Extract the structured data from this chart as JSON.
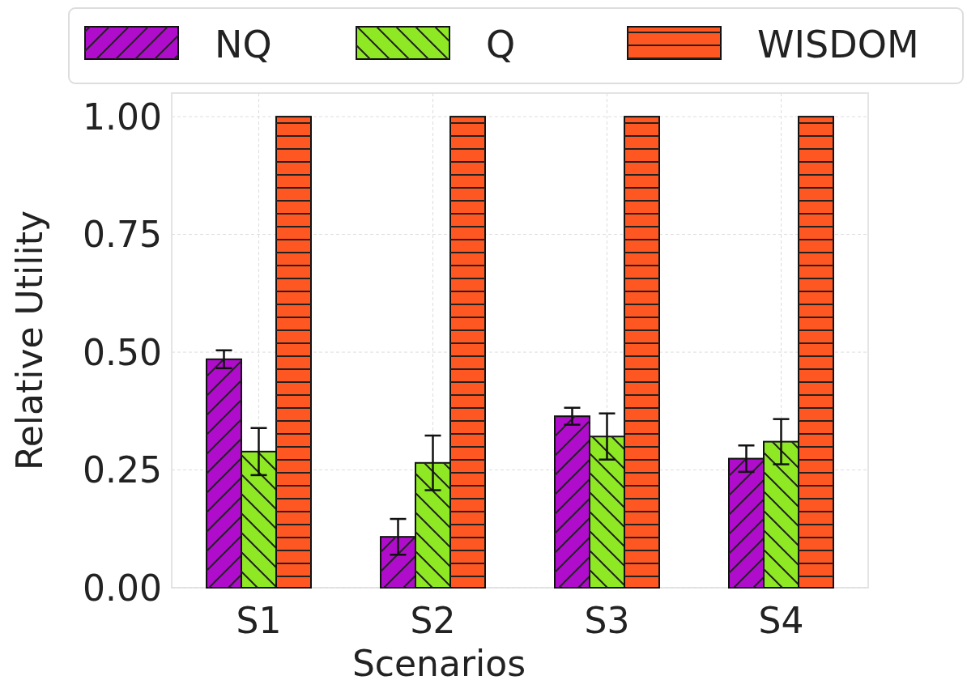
{
  "chart_data": {
    "type": "bar",
    "xlabel": "Scenarios",
    "ylabel": "Relative Utility",
    "categories": [
      "S1",
      "S2",
      "S3",
      "S4"
    ],
    "series": [
      {
        "name": "NQ",
        "color": "#b00ccc",
        "values": [
          0.485,
          0.108,
          0.364,
          0.274
        ],
        "errors": [
          0.019,
          0.038,
          0.018,
          0.028
        ]
      },
      {
        "name": "Q",
        "color": "#8ee824",
        "values": [
          0.289,
          0.265,
          0.321,
          0.31
        ],
        "errors": [
          0.05,
          0.058,
          0.049,
          0.048
        ]
      },
      {
        "name": "WISDOM",
        "color": "#ff5722",
        "values": [
          1,
          1,
          1,
          1
        ]
      }
    ],
    "ylim": [
      0,
      1.05
    ],
    "yticks": [
      {
        "value": 0,
        "label": "0.00"
      },
      {
        "value": 0.25,
        "label": "0.25"
      },
      {
        "value": 0.5,
        "label": "0.50"
      },
      {
        "value": 0.75,
        "label": "0.75"
      },
      {
        "value": 1,
        "label": "1.00"
      }
    ],
    "grid": true,
    "legend": "top"
  }
}
